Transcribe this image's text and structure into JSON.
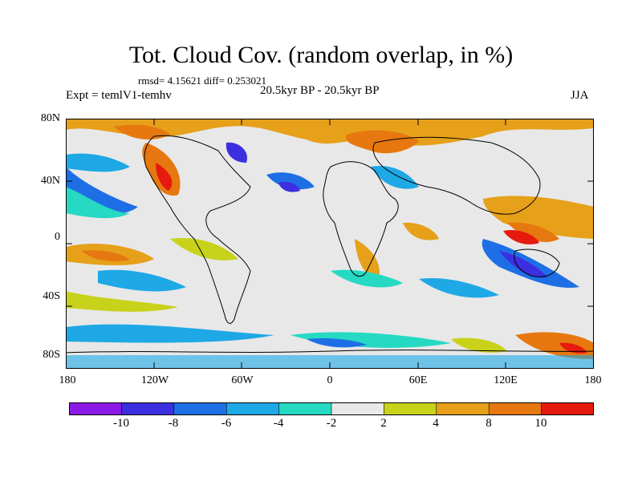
{
  "map": {
    "title": "Tot. Cloud Cov. (random overlap, in %)",
    "stats": "rmsd= 4.15621 diff= 0.253021",
    "experiment": "Expt = temlV1-temhv",
    "period": "20.5kyr BP - 20.5kyr BP",
    "season": "JJA",
    "lat_labels": [
      "80N",
      "40N",
      "0",
      "40S",
      "80S"
    ],
    "lon_labels": [
      "180",
      "120W",
      "60W",
      "0",
      "60E",
      "120E",
      "180"
    ],
    "colorbar": {
      "labels": [
        "-10",
        "-8",
        "-6",
        "-4",
        "-2",
        "2",
        "4",
        "8",
        "10"
      ],
      "colors": [
        "#8b1ae6",
        "#3c2fe0",
        "#1e6fe6",
        "#1ea8e6",
        "#26d9c3",
        "#e8e8e8",
        "#c8d21a",
        "#e6a01a",
        "#e6780f",
        "#e61a0f"
      ]
    }
  }
}
